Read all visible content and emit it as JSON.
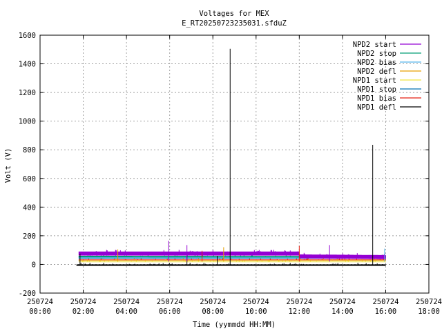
{
  "chart_data": {
    "type": "line",
    "title": "Voltages for MEX",
    "subtitle": "E_RT20250723235031.sfduZ",
    "xlabel": "Time (yymmdd HH:MM)",
    "ylabel": "Volt (V)",
    "xlim_hours": [
      0,
      18
    ],
    "ylim": [
      -200,
      1600
    ],
    "grid": true,
    "legend_position": "top-right",
    "x_ticks": [
      {
        "date": "250724",
        "time": "00:00",
        "h": 0
      },
      {
        "date": "250724",
        "time": "02:00",
        "h": 2
      },
      {
        "date": "250724",
        "time": "04:00",
        "h": 4
      },
      {
        "date": "250724",
        "time": "06:00",
        "h": 6
      },
      {
        "date": "250724",
        "time": "08:00",
        "h": 8
      },
      {
        "date": "250724",
        "time": "10:00",
        "h": 10
      },
      {
        "date": "250724",
        "time": "12:00",
        "h": 12
      },
      {
        "date": "250724",
        "time": "14:00",
        "h": 14
      },
      {
        "date": "250724",
        "time": "16:00",
        "h": 16
      },
      {
        "date": "250724",
        "time": "18:00",
        "h": 18
      }
    ],
    "y_ticks": [
      -200,
      0,
      200,
      400,
      600,
      800,
      1000,
      1200,
      1400,
      1600
    ],
    "series": [
      {
        "name": "NPD2 start",
        "color": "#9400d3",
        "base": 90,
        "band_low": 62,
        "end_h": 16.0,
        "points": [
          [
            1.8,
            90
          ],
          [
            12.0,
            90
          ],
          [
            12.0,
            70
          ],
          [
            16.0,
            65
          ]
        ]
      },
      {
        "name": "NPD2 stop",
        "color": "#009e73",
        "base": 60,
        "band_low": 50,
        "end_h": 16.0,
        "points": [
          [
            1.8,
            60
          ],
          [
            16.0,
            58
          ]
        ]
      },
      {
        "name": "NPD2 bias",
        "color": "#56b4e9",
        "base": 55,
        "band_low": 45,
        "end_h": 16.0,
        "points": [
          [
            1.8,
            55
          ],
          [
            16.0,
            52
          ]
        ]
      },
      {
        "name": "NPD2 defl",
        "color": "#e69f00",
        "base": 30,
        "band_low": 25,
        "end_h": 16.0,
        "points": [
          [
            1.8,
            30
          ],
          [
            16.0,
            30
          ]
        ]
      },
      {
        "name": "NPD1 start",
        "color": "#f0e442",
        "base": 20,
        "band_low": 15,
        "end_h": 16.0,
        "points": [
          [
            1.8,
            20
          ],
          [
            16.0,
            20
          ]
        ]
      },
      {
        "name": "NPD1 stop",
        "color": "#0072b2",
        "base": 45,
        "band_low": 40,
        "end_h": 16.0,
        "points": [
          [
            1.8,
            45
          ],
          [
            16.0,
            45
          ]
        ]
      },
      {
        "name": "NPD1 bias",
        "color": "#e51e10",
        "base": 35,
        "band_low": 30,
        "end_h": 16.0,
        "points": [
          [
            1.8,
            35
          ],
          [
            16.0,
            35
          ]
        ]
      },
      {
        "name": "NPD1 defl",
        "color": "#000000",
        "base": 0,
        "band_low": -10,
        "end_h": 16.0,
        "points": [
          [
            1.7,
            0
          ],
          [
            16.0,
            0
          ]
        ]
      }
    ],
    "spikes": [
      {
        "series": "NPD1 defl",
        "x_h": 8.8,
        "y": 1505
      },
      {
        "series": "NPD1 defl",
        "x_h": 15.4,
        "y": 835
      },
      {
        "series": "NPD1 defl",
        "x_h": 1.85,
        "y": 75
      },
      {
        "series": "NPD1 defl",
        "x_h": 6.8,
        "y": 60
      },
      {
        "series": "NPD1 defl",
        "x_h": 8.2,
        "y": 60
      },
      {
        "series": "NPD2 start",
        "x_h": 5.95,
        "y": 165
      },
      {
        "series": "NPD2 start",
        "x_h": 6.8,
        "y": 135
      },
      {
        "series": "NPD2 start",
        "x_h": 13.4,
        "y": 135
      },
      {
        "series": "NPD2 defl",
        "x_h": 3.6,
        "y": 105
      },
      {
        "series": "NPD2 defl",
        "x_h": 8.5,
        "y": 120
      },
      {
        "series": "NPD1 bias",
        "x_h": 7.5,
        "y": 95
      },
      {
        "series": "NPD1 bias",
        "x_h": 12.0,
        "y": 130
      },
      {
        "series": "NPD2 bias",
        "x_h": 15.95,
        "y": 110
      }
    ]
  }
}
